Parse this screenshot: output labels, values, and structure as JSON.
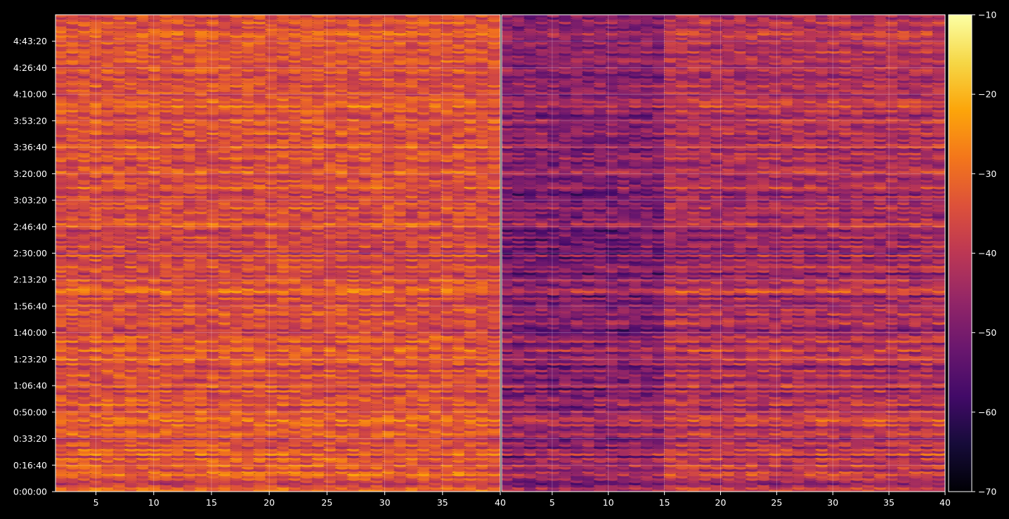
{
  "chart_data": {
    "type": "heatmap",
    "title": "",
    "xlabel": "",
    "ylabel": "",
    "panels": [
      {
        "name": "",
        "xlim": [
          1.5,
          40
        ],
        "x_ticks": [
          "5",
          "10",
          "15",
          "20",
          "25",
          "30",
          "35",
          "40"
        ],
        "x_tick_values": [
          5,
          10,
          15,
          20,
          25,
          30,
          35,
          40
        ]
      },
      {
        "name": "",
        "xlim": [
          0.5,
          40
        ],
        "x_ticks": [
          "5",
          "10",
          "15",
          "20",
          "25",
          "30",
          "35",
          "40"
        ],
        "x_tick_values": [
          5,
          10,
          15,
          20,
          25,
          30,
          35,
          40
        ]
      }
    ],
    "ylim_seconds": [
      0,
      18000
    ],
    "y_ticks": [
      "0:00:00",
      "0:16:40",
      "0:33:20",
      "0:50:00",
      "1:06:40",
      "1:23:20",
      "1:40:00",
      "1:56:40",
      "2:13:20",
      "2:30:00",
      "2:46:40",
      "3:03:20",
      "3:20:00",
      "3:36:40",
      "3:53:20",
      "4:10:00",
      "4:26:40",
      "4:43:20"
    ],
    "y_tick_values_seconds": [
      0,
      1000,
      2000,
      3000,
      4000,
      5000,
      6000,
      7000,
      8000,
      9000,
      10000,
      11000,
      12000,
      13000,
      14000,
      15000,
      16000,
      17000
    ],
    "colorbar": {
      "colormap": "inferno",
      "range": [
        -70,
        -10
      ],
      "ticks": [
        "−10",
        "−20",
        "−30",
        "−40",
        "−50",
        "−60",
        "−70"
      ],
      "tick_values": [
        -10,
        -20,
        -30,
        -40,
        -50,
        -60,
        -70
      ]
    },
    "grid": true,
    "background": "#000000",
    "row_levels_left": [
      -30,
      -30,
      -36,
      -40,
      -38,
      -34,
      -34,
      -28,
      -30,
      -36,
      -32,
      -30,
      -35,
      -32,
      -30,
      -40,
      -28,
      -34,
      -30,
      -38,
      -32,
      -34,
      -36,
      -40,
      -32,
      -30,
      -32,
      -34,
      -36,
      -30,
      -32,
      -28,
      -30,
      -32,
      -34,
      -32,
      -36,
      -38,
      -30,
      -34,
      -32,
      -34,
      -36,
      -38,
      -32,
      -40,
      -30,
      -34,
      -36,
      -38,
      -34,
      -32,
      -36,
      -32,
      -38,
      -40,
      -32,
      -34,
      -30,
      -32,
      -34,
      -36,
      -30,
      -32,
      -36,
      -38,
      -30,
      -34,
      -32,
      -38,
      -36,
      -40,
      -38,
      -36,
      -33,
      -34,
      -36,
      -38,
      -32,
      -34,
      -33,
      -36,
      -34,
      -38,
      -36,
      -34,
      -40,
      -32,
      -28,
      -30,
      -34,
      -36,
      -34,
      -32,
      -38,
      -36,
      -40,
      -34,
      -36,
      -32,
      -36,
      -38,
      -34,
      -40,
      -32,
      -42,
      -36,
      -40,
      -34,
      -38,
      -36,
      -40,
      -34,
      -36,
      -38,
      -40,
      -36,
      -32,
      -30,
      -36,
      -34,
      -38,
      -36,
      -34,
      -38,
      -32,
      -36,
      -34,
      -38,
      -36,
      -34,
      -40,
      -38,
      -36,
      -30,
      -34,
      -36,
      -34,
      -38,
      -36,
      -34,
      -30,
      -34,
      -34,
      -36,
      -38,
      -34,
      -32,
      -34,
      -33,
      -36,
      -38,
      -30,
      -32,
      -36,
      -34,
      -38,
      -36,
      -32,
      -34,
      -33,
      -36,
      -34,
      -32,
      -32,
      -36,
      -38,
      -34,
      -32,
      -36,
      -28,
      -32,
      -30,
      -32,
      -34,
      -36,
      -34,
      -34,
      -36,
      -32,
      -34,
      -36,
      -34,
      -38,
      -36,
      -34,
      -32,
      -34,
      -36,
      -34,
      -32,
      -34,
      -34,
      -36,
      -32,
      -34,
      -36,
      -34,
      -32,
      -36,
      -34,
      -32,
      -30,
      -32,
      -34,
      -36,
      -34,
      -32,
      -34,
      -36,
      -34
    ],
    "row_levels_right": [
      -38,
      -36,
      -42,
      -48,
      -44,
      -40,
      -40,
      -34,
      -36,
      -44,
      -38,
      -34,
      -42,
      -38,
      -36,
      -48,
      -32,
      -40,
      -36,
      -46,
      -38,
      -40,
      -44,
      -48,
      -38,
      -36,
      -40,
      -42,
      -44,
      -34,
      -38,
      -32,
      -36,
      -38,
      -42,
      -38,
      -44,
      -46,
      -36,
      -40,
      -38,
      -42,
      -44,
      -46,
      -38,
      -50,
      -36,
      -40,
      -44,
      -46,
      -42,
      -38,
      -44,
      -38,
      -46,
      -50,
      -38,
      -42,
      -36,
      -38,
      -42,
      -44,
      -34,
      -38,
      -44,
      -46,
      -36,
      -40,
      -38,
      -46,
      -44,
      -50,
      -46,
      -44,
      -38,
      -40,
      -44,
      -46,
      -38,
      -42,
      -40,
      -44,
      -42,
      -46,
      -44,
      -40,
      -50,
      -38,
      -32,
      -36,
      -42,
      -44,
      -40,
      -38,
      -46,
      -44,
      -50,
      -40,
      -44,
      -38,
      -44,
      -46,
      -42,
      -50,
      -38,
      -52,
      -44,
      -48,
      -40,
      -46,
      -44,
      -50,
      -42,
      -44,
      -46,
      -50,
      -44,
      -38,
      -36,
      -44,
      -40,
      -46,
      -44,
      -42,
      -46,
      -38,
      -44,
      -42,
      -46,
      -44,
      -42,
      -50,
      -46,
      -44,
      -36,
      -42,
      -44,
      -42,
      -46,
      -44,
      -40,
      -36,
      -40,
      -42,
      -44,
      -46,
      -42,
      -38,
      -42,
      -40,
      -44,
      -46,
      -36,
      -38,
      -44,
      -42,
      -46,
      -44,
      -38,
      -42,
      -40,
      -44,
      -42,
      -38,
      -38,
      -44,
      -46,
      -42,
      -38,
      -44,
      -34,
      -38,
      -36,
      -38,
      -42,
      -44,
      -40,
      -42,
      -44,
      -38,
      -40,
      -44,
      -42,
      -46,
      -44,
      -42,
      -38,
      -40,
      -44,
      -42,
      -38,
      -40,
      -42,
      -44,
      -38,
      -42,
      -44,
      -42,
      -38,
      -44,
      -40,
      -38,
      -36,
      -38,
      -42,
      -44,
      -42,
      -38,
      -40,
      -44,
      -42
    ]
  }
}
